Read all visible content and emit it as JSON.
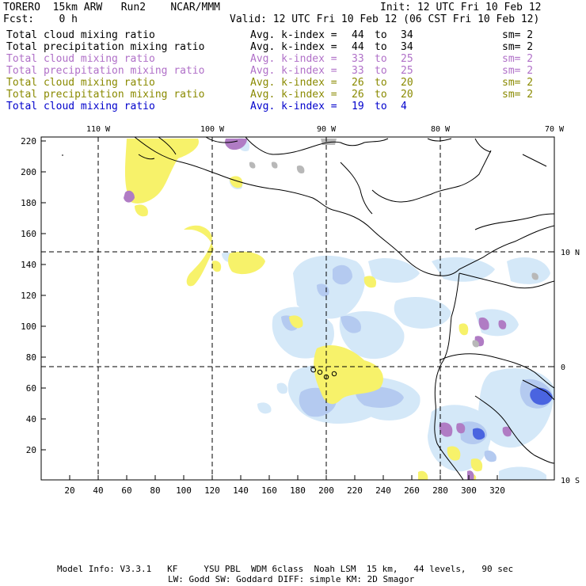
{
  "header": {
    "model": "TORERO",
    "resolution": "15km ARW",
    "run": "Run2",
    "org": "NCAR/MMM",
    "init": "Init: 12 UTC Fri 10 Feb 12",
    "fcst_label": "Fcst:",
    "fcst_value": "0 h",
    "valid": "Valid: 12 UTC Fri 10 Feb 12 (06 CST Fri 10 Feb 12)"
  },
  "legend_rows": [
    {
      "field": "Total cloud mixing ratio",
      "kindex": "Avg. k-index =",
      "from": "44",
      "to_word": "to",
      "to": "34",
      "sm": "sm= 2",
      "color": "#000000"
    },
    {
      "field": "Total precipitation mixing ratio",
      "kindex": "Avg. k-index =",
      "from": "44",
      "to_word": "to",
      "to": "34",
      "sm": "sm= 2",
      "color": "#000000"
    },
    {
      "field": "Total cloud mixing ratio",
      "kindex": "Avg. k-index =",
      "from": "33",
      "to_word": "to",
      "to": "25",
      "sm": "sm= 2",
      "color": "#b070c8"
    },
    {
      "field": "Total precipitation mixing ratio",
      "kindex": "Avg. k-index =",
      "from": "33",
      "to_word": "to",
      "to": "25",
      "sm": "sm= 2",
      "color": "#b070c8"
    },
    {
      "field": "Total cloud mixing ratio",
      "kindex": "Avg. k-index =",
      "from": "26",
      "to_word": "to",
      "to": "20",
      "sm": "sm= 2",
      "color": "#8a8a00"
    },
    {
      "field": "Total precipitation mixing ratio",
      "kindex": "Avg. k-index =",
      "from": "26",
      "to_word": "to",
      "to": "20",
      "sm": "sm= 2",
      "color": "#8a8a00"
    },
    {
      "field": "Total cloud mixing ratio",
      "kindex": "Avg. k-index =",
      "from": "19",
      "to_word": "to",
      "to": "4",
      "sm": "",
      "color": "#0000cc"
    }
  ],
  "map": {
    "x_ticks": [
      "20",
      "40",
      "60",
      "80",
      "100",
      "120",
      "140",
      "160",
      "180",
      "200",
      "220",
      "240",
      "260",
      "280",
      "300",
      "320"
    ],
    "y_ticks": [
      "20",
      "40",
      "60",
      "80",
      "100",
      "120",
      "140",
      "160",
      "180",
      "200",
      "220"
    ],
    "lon_labels": [
      "110 W",
      "100 W",
      "90 W",
      "80 W",
      "70 W"
    ],
    "lat_labels": [
      "10 N",
      "0",
      "10 S"
    ],
    "colors": {
      "yellow": "#f7f26a",
      "light_blue": "#d4e8f8",
      "mid_blue": "#b4caf0",
      "blue": "#4a64e0",
      "purple": "#b07cc4",
      "gray": "#b8b8b8"
    }
  },
  "footer": {
    "line1": "Model Info: V3.3.1   KF     YSU PBL  WDM 6class  Noah LSM  15 km,   44 levels,   90 sec",
    "line2": "LW: Godd SW: Goddard DIFF: simple KM: 2D Smagor"
  }
}
